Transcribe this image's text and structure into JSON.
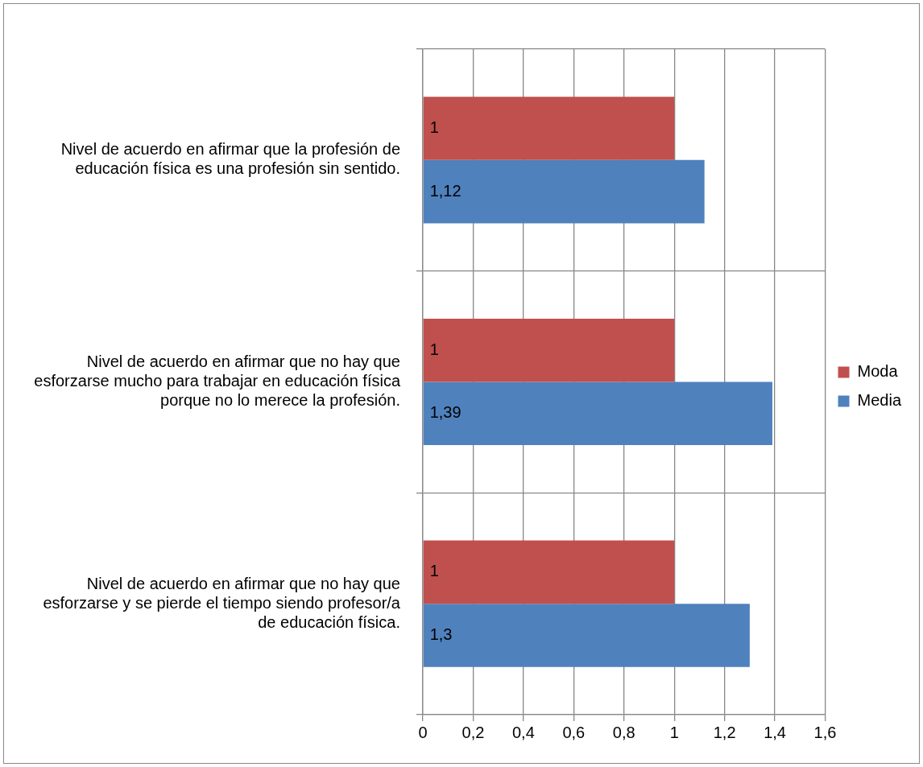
{
  "chart_data": {
    "type": "bar",
    "orientation": "horizontal",
    "categories": [
      "Nivel de acuerdo en afirmar que la profesión de educación física es una profesión sin sentido.",
      "Nivel de acuerdo en afirmar que no hay que esforzarse mucho para trabajar en educación física porque no lo merece la profesión.",
      "Nivel de acuerdo en afirmar que no hay que esforzarse y se pierde el tiempo siendo profesor/a de educación física."
    ],
    "series": [
      {
        "name": "Moda",
        "color": "#c0504d",
        "values": [
          1,
          1,
          1
        ],
        "value_labels": [
          "1",
          "1",
          "1"
        ]
      },
      {
        "name": "Media",
        "color": "#4f81bd",
        "values": [
          1.12,
          1.39,
          1.3
        ],
        "value_labels": [
          "1,12",
          "1,39",
          "1,3"
        ]
      }
    ],
    "xlim": [
      0,
      1.6
    ],
    "xticks": [
      0,
      {
        "value": 0.2,
        "label": "0,2"
      },
      {
        "value": 0.4,
        "label": "0,4"
      },
      {
        "value": 0.6,
        "label": "0,6"
      },
      {
        "value": 0.8,
        "label": "0,8"
      },
      1,
      {
        "value": 1.2,
        "label": "1,2"
      },
      {
        "value": 1.4,
        "label": "1,4"
      },
      {
        "value": 1.6,
        "label": "1,6"
      }
    ],
    "grid": true,
    "legend": "right"
  }
}
